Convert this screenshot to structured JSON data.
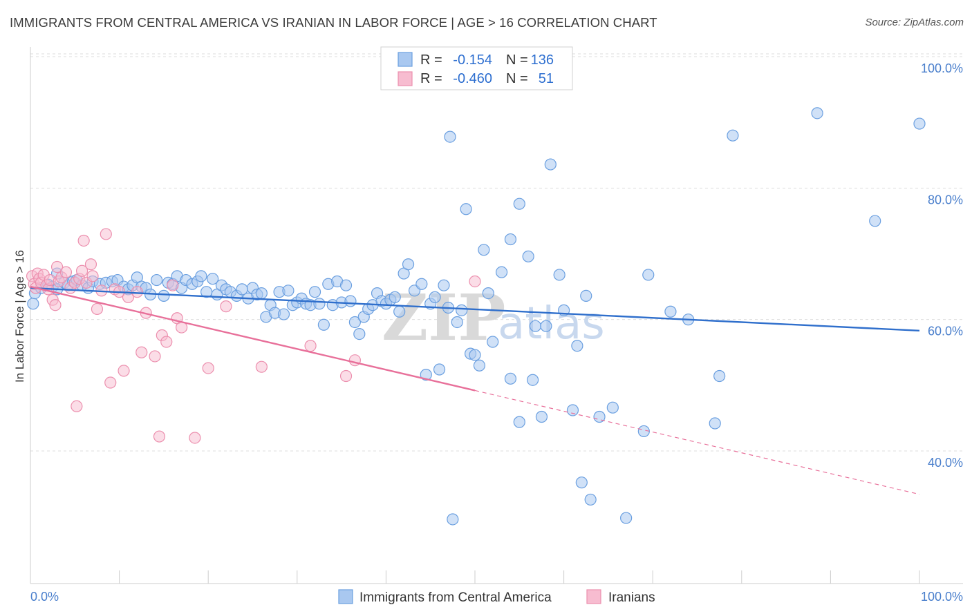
{
  "title": "IMMIGRANTS FROM CENTRAL AMERICA VS IRANIAN IN LABOR FORCE | AGE > 16 CORRELATION CHART",
  "source": "Source: ZipAtlas.com",
  "watermark": {
    "zip": "ZIP",
    "atlas": "atlas"
  },
  "colors": {
    "blue_fill": "#a9c8f0",
    "blue_stroke": "#6a9fe0",
    "blue_line": "#2f6fcc",
    "pink_fill": "#f7bcd0",
    "pink_stroke": "#ec8fae",
    "pink_line": "#e8709a",
    "grid": "#dddddd",
    "tick_text": "#4a7fcc"
  },
  "legend": {
    "rows": [
      {
        "r_label": "R =",
        "r_value": "-0.154",
        "n_label": "N =",
        "n_value": "136"
      },
      {
        "r_label": "R =",
        "r_value": "-0.460",
        "n_label": "N =",
        "n_value": "51"
      }
    ]
  },
  "chart_data": {
    "type": "scatter",
    "title": "IMMIGRANTS FROM CENTRAL AMERICA VS IRANIAN IN LABOR FORCE | AGE > 16 CORRELATION CHART",
    "xlabel": "",
    "ylabel": "In Labor Force | Age > 16",
    "xlim": [
      0,
      100
    ],
    "ylim": [
      20,
      102
    ],
    "x_tick_labels": [
      "0.0%",
      "100.0%"
    ],
    "y_ticks": [
      {
        "value": 40,
        "label": "40.0%"
      },
      {
        "value": 60,
        "label": "60.0%"
      },
      {
        "value": 80,
        "label": "80.0%"
      },
      {
        "value": 100,
        "label": "100.0%"
      }
    ],
    "grid": true,
    "legend_position": "top-center",
    "series": [
      {
        "name": "Immigrants from Central America",
        "color": "#a9c8f0",
        "trend": {
          "x": [
            0,
            100
          ],
          "y": [
            64.8,
            58.3
          ],
          "style": "solid"
        },
        "points": [
          [
            0.3,
            62.4
          ],
          [
            0.5,
            64.0
          ],
          [
            1.2,
            64.8
          ],
          [
            2.0,
            65.3
          ],
          [
            2.5,
            65.0
          ],
          [
            3.0,
            64.6
          ],
          [
            3.8,
            65.6
          ],
          [
            4.2,
            65.2
          ],
          [
            4.8,
            65.8
          ],
          [
            5.2,
            66.0
          ],
          [
            5.8,
            65.2
          ],
          [
            6.5,
            64.8
          ],
          [
            7.0,
            65.8
          ],
          [
            7.8,
            65.4
          ],
          [
            8.5,
            65.6
          ],
          [
            9.2,
            65.8
          ],
          [
            9.8,
            66.0
          ],
          [
            10.5,
            65.0
          ],
          [
            11.0,
            64.6
          ],
          [
            11.5,
            65.2
          ],
          [
            12.0,
            66.4
          ],
          [
            12.5,
            65.0
          ],
          [
            13.0,
            64.8
          ],
          [
            13.5,
            63.8
          ],
          [
            14.2,
            66.0
          ],
          [
            15.0,
            63.6
          ],
          [
            15.5,
            65.6
          ],
          [
            16.0,
            65.4
          ],
          [
            16.5,
            66.6
          ],
          [
            17.0,
            64.8
          ],
          [
            17.5,
            66.0
          ],
          [
            18.2,
            65.4
          ],
          [
            18.8,
            65.8
          ],
          [
            19.2,
            66.6
          ],
          [
            19.8,
            64.2
          ],
          [
            20.5,
            66.2
          ],
          [
            21.0,
            63.8
          ],
          [
            21.5,
            65.2
          ],
          [
            22.0,
            64.6
          ],
          [
            22.5,
            64.2
          ],
          [
            23.2,
            63.6
          ],
          [
            23.8,
            64.6
          ],
          [
            24.5,
            63.2
          ],
          [
            25.0,
            64.8
          ],
          [
            25.5,
            63.8
          ],
          [
            26.0,
            64.0
          ],
          [
            26.5,
            60.4
          ],
          [
            27.0,
            62.2
          ],
          [
            27.5,
            61.0
          ],
          [
            28.0,
            64.2
          ],
          [
            28.5,
            60.8
          ],
          [
            29.0,
            64.4
          ],
          [
            29.5,
            62.2
          ],
          [
            30.0,
            62.6
          ],
          [
            30.5,
            63.2
          ],
          [
            31.0,
            62.4
          ],
          [
            31.5,
            62.2
          ],
          [
            32.0,
            64.2
          ],
          [
            32.5,
            62.4
          ],
          [
            33.0,
            59.2
          ],
          [
            33.5,
            65.4
          ],
          [
            34.0,
            62.2
          ],
          [
            34.5,
            65.8
          ],
          [
            35.0,
            62.6
          ],
          [
            35.5,
            65.2
          ],
          [
            36.0,
            62.8
          ],
          [
            36.5,
            59.6
          ],
          [
            37.0,
            57.8
          ],
          [
            37.5,
            60.4
          ],
          [
            38.0,
            61.6
          ],
          [
            38.5,
            62.2
          ],
          [
            39.0,
            64.0
          ],
          [
            39.5,
            62.8
          ],
          [
            40.0,
            62.4
          ],
          [
            40.5,
            63.0
          ],
          [
            41.0,
            63.4
          ],
          [
            41.5,
            61.2
          ],
          [
            42.0,
            67.0
          ],
          [
            42.5,
            68.4
          ],
          [
            43.2,
            64.4
          ],
          [
            44.0,
            65.4
          ],
          [
            44.5,
            51.6
          ],
          [
            45.0,
            62.4
          ],
          [
            45.5,
            63.4
          ],
          [
            46.0,
            52.4
          ],
          [
            46.5,
            65.2
          ],
          [
            47.0,
            61.8
          ],
          [
            47.5,
            29.6
          ],
          [
            47.2,
            87.8
          ],
          [
            48.0,
            59.6
          ],
          [
            48.5,
            61.4
          ],
          [
            49.0,
            76.8
          ],
          [
            49.5,
            54.8
          ],
          [
            50.0,
            54.6
          ],
          [
            50.5,
            53.0
          ],
          [
            51.0,
            70.6
          ],
          [
            51.5,
            64.0
          ],
          [
            52.0,
            56.6
          ],
          [
            53.0,
            67.2
          ],
          [
            54.0,
            72.2
          ],
          [
            54.0,
            51.0
          ],
          [
            55.0,
            44.4
          ],
          [
            55.0,
            77.6
          ],
          [
            56.0,
            69.6
          ],
          [
            56.5,
            50.8
          ],
          [
            56.8,
            59.0
          ],
          [
            57.5,
            45.2
          ],
          [
            58.0,
            59.0
          ],
          [
            58.5,
            83.6
          ],
          [
            59.5,
            66.8
          ],
          [
            60.0,
            61.4
          ],
          [
            61.0,
            46.2
          ],
          [
            61.5,
            56.0
          ],
          [
            62.0,
            35.2
          ],
          [
            62.5,
            63.6
          ],
          [
            63.0,
            32.6
          ],
          [
            64.0,
            45.2
          ],
          [
            65.5,
            46.6
          ],
          [
            67.0,
            29.8
          ],
          [
            69.0,
            43.0
          ],
          [
            69.5,
            66.8
          ],
          [
            72.0,
            61.2
          ],
          [
            74.0,
            60.0
          ],
          [
            77.0,
            44.2
          ],
          [
            77.5,
            51.4
          ],
          [
            79.0,
            88.0
          ],
          [
            88.5,
            91.4
          ],
          [
            95.0,
            75.0
          ],
          [
            100.0,
            89.8
          ],
          [
            3.0,
            67.0
          ]
        ]
      },
      {
        "name": "Iranians",
        "color": "#f7bcd0",
        "trend": {
          "x": [
            0,
            50
          ],
          "y": [
            65.0,
            49.2
          ],
          "style": "solid",
          "extension": {
            "x": [
              50,
              100
            ],
            "y": [
              49.2,
              33.4
            ],
            "style": "dashed"
          }
        },
        "points": [
          [
            0.2,
            66.6
          ],
          [
            0.4,
            65.4
          ],
          [
            0.6,
            64.8
          ],
          [
            0.8,
            67.0
          ],
          [
            1.0,
            66.2
          ],
          [
            1.2,
            65.6
          ],
          [
            1.5,
            66.8
          ],
          [
            1.8,
            65.2
          ],
          [
            2.0,
            64.6
          ],
          [
            2.2,
            66.0
          ],
          [
            2.5,
            63.0
          ],
          [
            2.8,
            62.2
          ],
          [
            3.0,
            68.0
          ],
          [
            3.2,
            65.8
          ],
          [
            3.5,
            66.4
          ],
          [
            4.0,
            67.2
          ],
          [
            4.5,
            64.8
          ],
          [
            5.0,
            65.6
          ],
          [
            5.2,
            46.8
          ],
          [
            5.5,
            66.2
          ],
          [
            5.8,
            67.4
          ],
          [
            6.0,
            72.0
          ],
          [
            6.3,
            65.6
          ],
          [
            6.8,
            68.4
          ],
          [
            7.0,
            66.6
          ],
          [
            7.5,
            61.6
          ],
          [
            8.0,
            64.4
          ],
          [
            8.5,
            73.0
          ],
          [
            9.0,
            50.4
          ],
          [
            9.5,
            64.6
          ],
          [
            10.0,
            64.2
          ],
          [
            10.5,
            52.2
          ],
          [
            11.0,
            63.4
          ],
          [
            12.0,
            64.2
          ],
          [
            12.5,
            55.0
          ],
          [
            13.0,
            61.0
          ],
          [
            14.0,
            54.4
          ],
          [
            14.5,
            42.2
          ],
          [
            14.8,
            57.6
          ],
          [
            15.3,
            56.6
          ],
          [
            16.0,
            65.2
          ],
          [
            16.5,
            60.2
          ],
          [
            17.0,
            58.8
          ],
          [
            18.5,
            42.0
          ],
          [
            20.0,
            52.6
          ],
          [
            22.0,
            62.0
          ],
          [
            26.0,
            52.8
          ],
          [
            31.5,
            56.0
          ],
          [
            35.5,
            51.4
          ],
          [
            36.5,
            53.8
          ],
          [
            50.0,
            65.8
          ]
        ]
      }
    ]
  },
  "bottom_legend": [
    "Immigrants from Central America",
    "Iranians"
  ]
}
